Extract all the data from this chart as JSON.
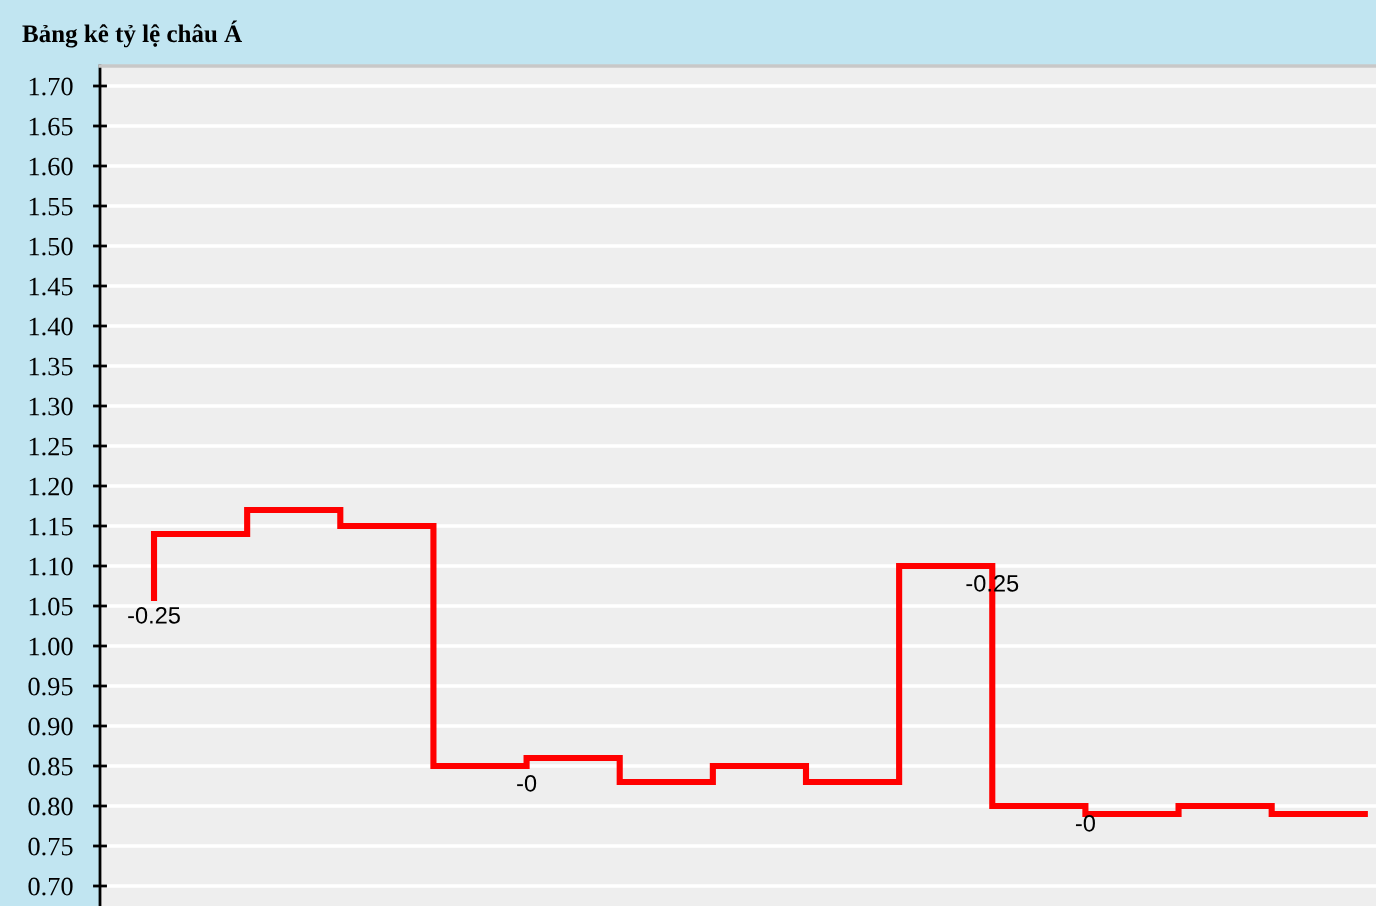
{
  "chart_data": {
    "type": "step",
    "title": "Bảng kê tỷ lệ châu Á",
    "categories": [
      null,
      null,
      null,
      null,
      null,
      null,
      null,
      null,
      null,
      null,
      null,
      null,
      null,
      null
    ],
    "series": [
      {
        "color": "#ff0000",
        "values": [
          1.06,
          1.14,
          1.17,
          1.15,
          0.85,
          0.86,
          0.83,
          0.85,
          0.83,
          1.1,
          0.8,
          0.79,
          0.8,
          0.79
        ]
      }
    ],
    "annotations": [
      {
        "text": "-0.25",
        "y": 1.1
      },
      {
        "text": "-0.25",
        "y": 1.06
      },
      {
        "text": "-0",
        "y": 0.85
      },
      {
        "text": "-0",
        "y": 0.8
      }
    ],
    "ylim": [
      0.675,
      1.725
    ],
    "yticks": [
      {
        "value": 0.7,
        "label": "0.70"
      },
      {
        "value": 0.75,
        "label": "0.75"
      },
      {
        "value": 0.8,
        "label": "0.80"
      },
      {
        "value": 0.85,
        "label": "0.85"
      },
      {
        "value": 0.9,
        "label": "0.90"
      },
      {
        "value": 0.95,
        "label": "0.95"
      },
      {
        "value": 1.0,
        "label": "1.00"
      },
      {
        "value": 1.05,
        "label": "1.05"
      },
      {
        "value": 1.1,
        "label": "1.10"
      },
      {
        "value": 1.15,
        "label": "1.15"
      },
      {
        "value": 1.2,
        "label": "1.20"
      },
      {
        "value": 1.25,
        "label": "1.25"
      },
      {
        "value": 1.3,
        "label": "1.30"
      },
      {
        "value": 1.35,
        "label": "1.35"
      },
      {
        "value": 1.4,
        "label": "1.40"
      },
      {
        "value": 1.45,
        "label": "1.45"
      },
      {
        "value": 1.5,
        "label": "1.50"
      },
      {
        "value": 1.55,
        "label": "1.55"
      },
      {
        "value": 1.6,
        "label": "1.60"
      },
      {
        "value": 1.65,
        "label": "1.65"
      },
      {
        "value": 1.7,
        "label": "1.70"
      }
    ],
    "grid": "y",
    "tick_labels": "y"
  }
}
